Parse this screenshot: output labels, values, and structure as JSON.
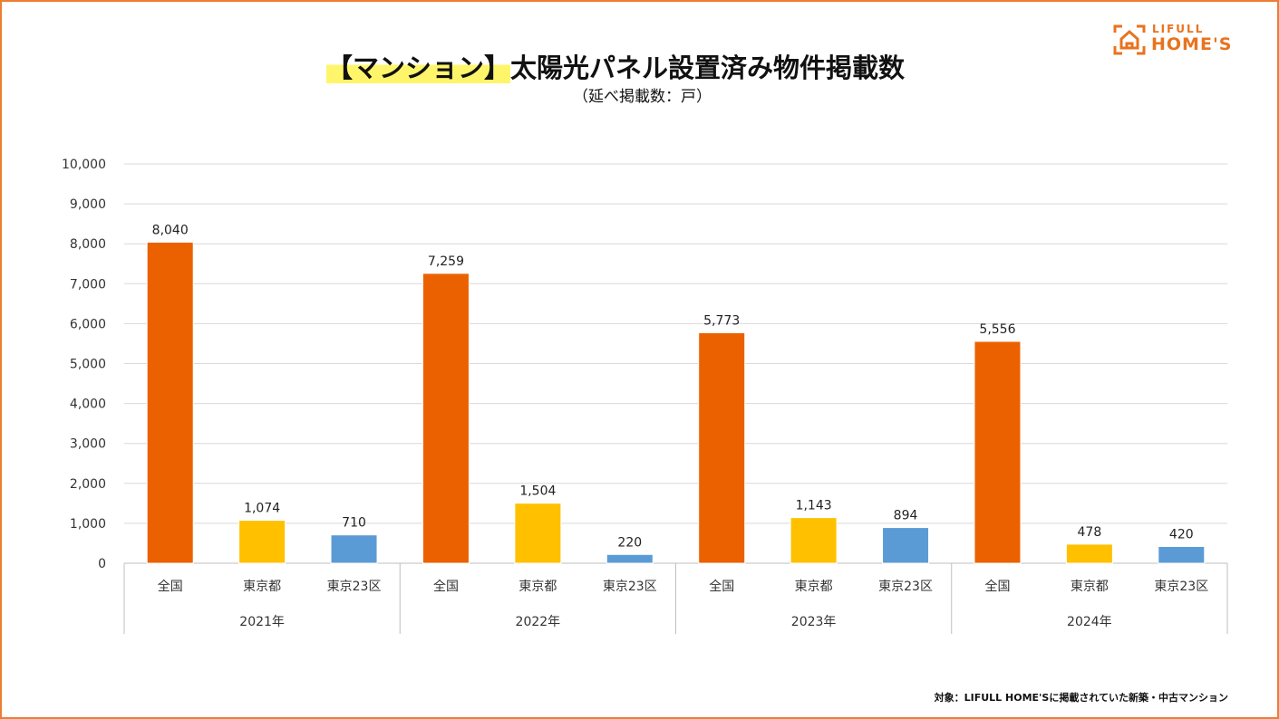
{
  "title_highlight": "【マンション】",
  "title_rest": "太陽光パネル設置済み物件掲載数",
  "subtitle": "（延べ掲載数：戸）",
  "logo": {
    "line1": "LIFULL",
    "line2": "HOME'S"
  },
  "note": "対象：LIFULL HOME'Sに掲載されていた新築・中古マンション",
  "colors": {
    "全国": "#EB6100",
    "東京都": "#FFC000",
    "東京23区": "#5B9BD5",
    "frame": "#ED7D31"
  },
  "chart_data": {
    "type": "bar",
    "title": "【マンション】太陽光パネル設置済み物件掲載数",
    "ylabel": "延べ掲載数：戸",
    "ylim": [
      0,
      10000
    ],
    "yticks": [
      "0",
      "1,000",
      "2,000",
      "3,000",
      "4,000",
      "5,000",
      "6,000",
      "7,000",
      "8,000",
      "9,000",
      "10,000"
    ],
    "grid": true,
    "groups": [
      "2021年",
      "2022年",
      "2023年",
      "2024年"
    ],
    "categories": [
      "全国",
      "東京都",
      "東京23区"
    ],
    "series": [
      {
        "group": "2021年",
        "values": [
          8040,
          1074,
          710
        ],
        "labels": [
          "8,040",
          "1,074",
          "710"
        ]
      },
      {
        "group": "2022年",
        "values": [
          7259,
          1504,
          220
        ],
        "labels": [
          "7,259",
          "1,504",
          "220"
        ]
      },
      {
        "group": "2023年",
        "values": [
          5773,
          1143,
          894
        ],
        "labels": [
          "5,773",
          "1,143",
          "894"
        ]
      },
      {
        "group": "2024年",
        "values": [
          5556,
          478,
          420
        ],
        "labels": [
          "5,556",
          "478",
          "420"
        ]
      }
    ]
  }
}
